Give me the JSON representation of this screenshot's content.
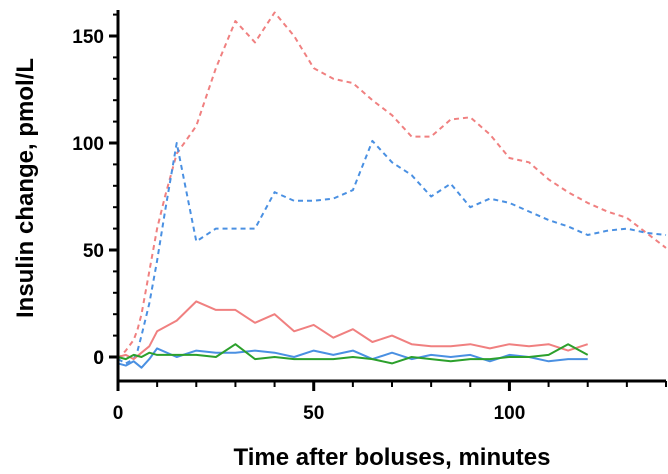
{
  "chart_data": {
    "type": "line",
    "title": "",
    "xlabel": "Time after boluses, minutes",
    "ylabel": "Insulin change, pmol/L",
    "xlim": [
      0,
      140
    ],
    "ylim": [
      -10,
      165
    ],
    "xticks": [
      0,
      50,
      100
    ],
    "yticks": [
      0,
      50,
      100,
      150
    ],
    "grid": false,
    "legend": "none",
    "series": [
      {
        "color": "#f08080",
        "style": "dashed",
        "x": [
          0,
          2,
          4,
          5,
          6,
          8,
          10,
          12,
          15,
          20,
          25,
          30,
          35,
          40,
          45,
          50,
          55,
          60,
          65,
          70,
          75,
          80,
          85,
          90,
          95,
          100,
          105,
          110,
          115,
          120,
          125,
          130,
          135,
          140
        ],
        "y": [
          -1,
          3,
          8,
          13,
          20,
          40,
          60,
          75,
          95,
          108,
          135,
          157,
          147,
          161,
          150,
          135,
          130,
          128,
          120,
          113,
          103,
          103,
          111,
          112,
          104,
          93,
          91,
          83,
          77,
          72,
          68,
          65,
          58,
          51
        ]
      },
      {
        "color": "#4a90e2",
        "style": "dashed",
        "x": [
          0,
          2,
          4,
          5,
          6,
          8,
          10,
          12,
          15,
          20,
          25,
          30,
          35,
          40,
          45,
          50,
          55,
          60,
          65,
          70,
          75,
          80,
          85,
          90,
          95,
          100,
          105,
          110,
          115,
          120,
          125,
          130,
          135,
          140
        ],
        "y": [
          -1,
          -3,
          -1,
          3,
          10,
          25,
          45,
          68,
          100,
          54,
          60,
          60,
          60,
          77,
          73,
          73,
          74,
          78,
          101,
          91,
          85,
          75,
          81,
          70,
          74,
          72,
          68,
          64,
          61,
          57,
          59,
          60,
          58,
          57
        ]
      },
      {
        "color": "#f08080",
        "style": "solid",
        "x": [
          0,
          2,
          4,
          6,
          8,
          10,
          15,
          20,
          25,
          30,
          35,
          40,
          45,
          50,
          55,
          60,
          65,
          70,
          75,
          80,
          85,
          90,
          95,
          100,
          105,
          110,
          115,
          120
        ],
        "y": [
          0,
          1,
          -1,
          2,
          5,
          12,
          17,
          26,
          22,
          22,
          16,
          20,
          12,
          15,
          9,
          13,
          7,
          10,
          6,
          5,
          5,
          6,
          4,
          6,
          5,
          6,
          3,
          6
        ]
      },
      {
        "color": "#4a90e2",
        "style": "solid",
        "x": [
          0,
          2,
          4,
          6,
          8,
          10,
          15,
          20,
          25,
          30,
          35,
          40,
          45,
          50,
          55,
          60,
          65,
          70,
          75,
          80,
          85,
          90,
          95,
          100,
          105,
          110,
          115,
          120
        ],
        "y": [
          -3,
          -4,
          -2,
          -5,
          -1,
          4,
          0,
          3,
          2,
          2,
          3,
          2,
          0,
          3,
          1,
          3,
          -1,
          2,
          -1,
          1,
          0,
          1,
          -2,
          1,
          0,
          -2,
          -1,
          -1
        ]
      },
      {
        "color": "#2ca02c",
        "style": "solid",
        "x": [
          0,
          2,
          4,
          6,
          8,
          10,
          15,
          20,
          25,
          30,
          35,
          40,
          45,
          50,
          55,
          60,
          65,
          70,
          75,
          80,
          85,
          90,
          95,
          100,
          105,
          110,
          115,
          120
        ],
        "y": [
          0,
          -1,
          1,
          0,
          2,
          1,
          1,
          1,
          0,
          6,
          -1,
          0,
          -1,
          -1,
          -1,
          0,
          -1,
          -3,
          0,
          -1,
          -2,
          -1,
          -1,
          0,
          0,
          1,
          6,
          1
        ]
      }
    ]
  }
}
